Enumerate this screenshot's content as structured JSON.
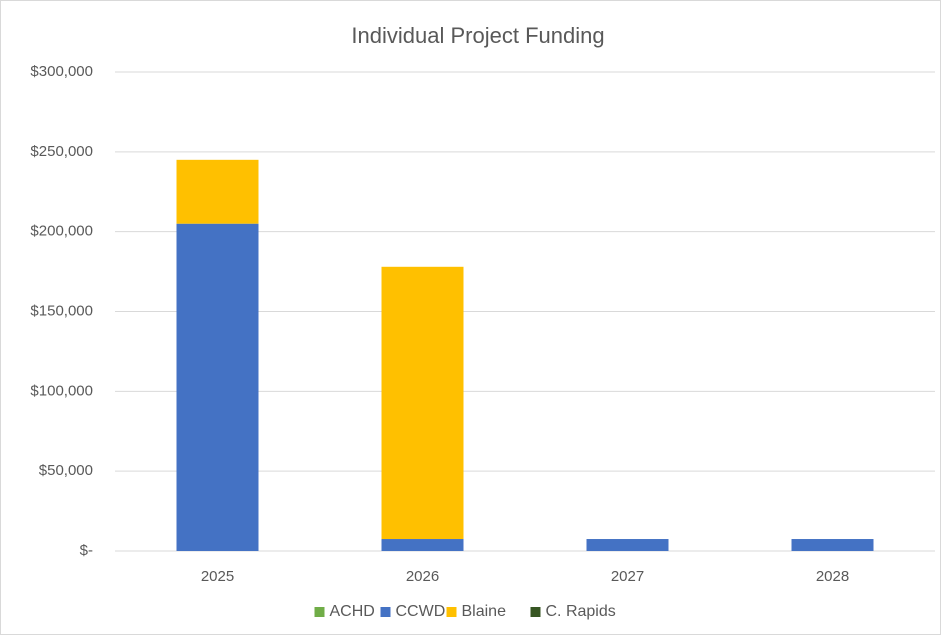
{
  "chart_data": {
    "type": "stacked_bar",
    "title": "Individual Project Funding",
    "categories": [
      "2025",
      "2026",
      "2027",
      "2028"
    ],
    "series": [
      {
        "name": "ACHD",
        "color": "#70ad47",
        "values": [
          0,
          0,
          0,
          0
        ]
      },
      {
        "name": "CCWD",
        "color": "#4472c4",
        "values": [
          205000,
          7500,
          7500,
          7500
        ]
      },
      {
        "name": "Blaine",
        "color": "#ffc000",
        "values": [
          40000,
          170500,
          0,
          0
        ]
      },
      {
        "name": "C. Rapids",
        "color": "#375623",
        "values": [
          0,
          0,
          0,
          0
        ]
      }
    ],
    "ylim": [
      0,
      300000
    ],
    "yticks": [
      {
        "value": 0,
        "label": "$-"
      },
      {
        "value": 50000,
        "label": "$50,000"
      },
      {
        "value": 100000,
        "label": "$100,000"
      },
      {
        "value": 150000,
        "label": "$150,000"
      },
      {
        "value": 200000,
        "label": "$200,000"
      },
      {
        "value": 250000,
        "label": "$250,000"
      },
      {
        "value": 300000,
        "label": "$300,000"
      }
    ],
    "grid": true,
    "legend": "bottom"
  }
}
